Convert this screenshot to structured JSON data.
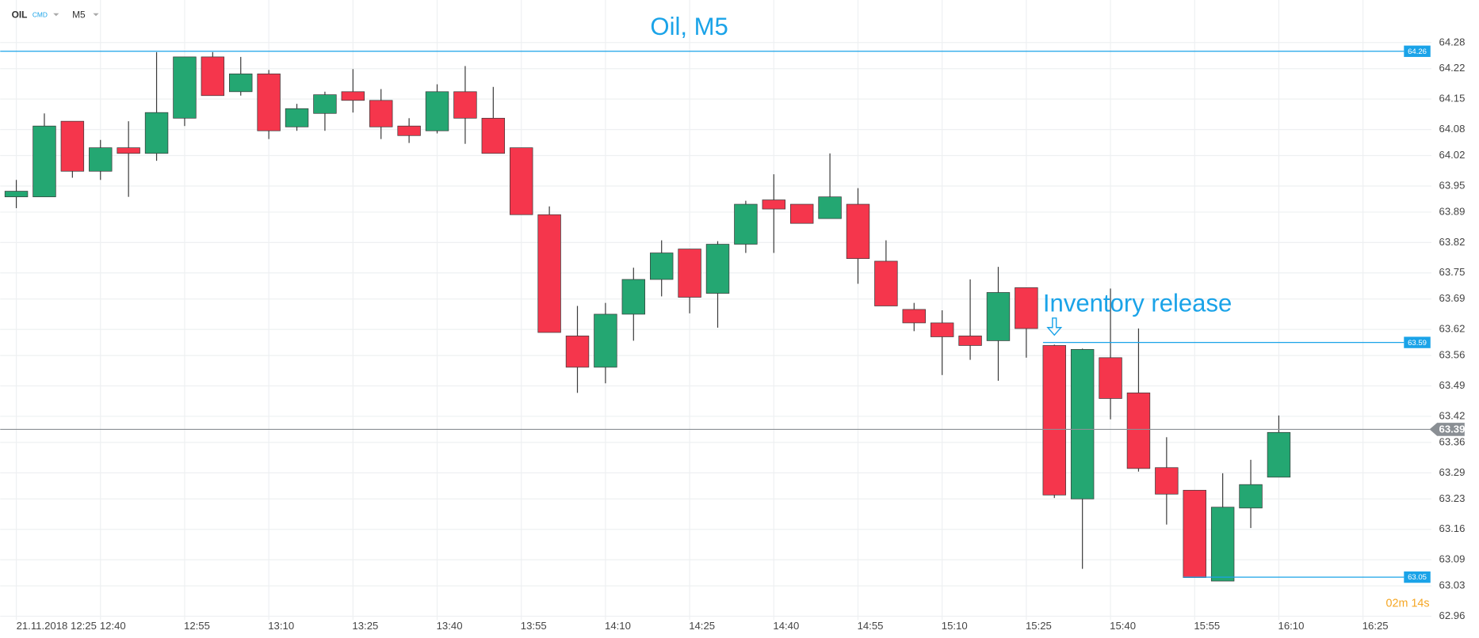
{
  "header": {
    "symbol": "OIL",
    "market": "CMD",
    "interval": "M5"
  },
  "chart_data": {
    "type": "candlestick",
    "title": "Oil, M5",
    "date": "21.11.2018",
    "annotation": {
      "text": "Inventory release",
      "x": "15:30"
    },
    "countdown": "02m 14s",
    "up_color": "#24a772",
    "down_color": "#f5364c",
    "grid": true,
    "ylim": [
      62.93,
      64.31
    ],
    "yticks": [
      64.28,
      64.22,
      64.15,
      64.08,
      64.02,
      63.95,
      63.89,
      63.82,
      63.75,
      63.69,
      63.62,
      63.56,
      63.49,
      63.42,
      63.36,
      63.29,
      63.23,
      63.16,
      63.09,
      63.03,
      62.96
    ],
    "xticks": [
      "12:25",
      "12:40",
      "12:55",
      "13:10",
      "13:25",
      "13:40",
      "13:55",
      "14:10",
      "14:25",
      "14:40",
      "14:55",
      "15:10",
      "15:25",
      "15:40",
      "15:55",
      "16:10",
      "16:25"
    ],
    "levels": [
      {
        "value": 64.26,
        "color": "#1aa3e8",
        "from": "12:25"
      },
      {
        "value": 63.59,
        "color": "#1aa3e8",
        "from": "15:30"
      },
      {
        "value": 63.05,
        "color": "#1aa3e8",
        "from": "15:55"
      }
    ],
    "current_price": {
      "value": 63.39,
      "color": "#8a8f94"
    },
    "x": [
      "12:25",
      "12:30",
      "12:35",
      "12:40",
      "12:45",
      "12:50",
      "12:55",
      "13:00",
      "13:05",
      "13:10",
      "13:15",
      "13:20",
      "13:25",
      "13:30",
      "13:35",
      "13:40",
      "13:45",
      "13:50",
      "13:55",
      "14:00",
      "14:05",
      "14:10",
      "14:15",
      "14:20",
      "14:25",
      "14:30",
      "14:35",
      "14:40",
      "14:45",
      "14:50",
      "14:55",
      "15:00",
      "15:05",
      "15:10",
      "15:15",
      "15:20",
      "15:25",
      "15:30",
      "15:35",
      "15:40",
      "15:45",
      "15:50",
      "15:55",
      "16:00",
      "16:05",
      "16:10"
    ],
    "open": [
      63.925,
      63.925,
      64.099,
      63.984,
      64.038,
      64.025,
      64.106,
      64.247,
      64.167,
      64.208,
      64.086,
      64.117,
      64.167,
      64.147,
      64.088,
      64.077,
      64.167,
      64.106,
      64.038,
      63.884,
      63.605,
      63.533,
      63.655,
      63.735,
      63.805,
      63.703,
      63.816,
      63.918,
      63.908,
      63.875,
      63.908,
      63.777,
      63.666,
      63.635,
      63.605,
      63.594,
      63.716,
      63.583,
      63.23,
      63.555,
      63.474,
      63.302,
      63.25,
      63.041,
      63.209,
      63.28
    ],
    "high": [
      63.964,
      64.117,
      64.099,
      64.056,
      64.099,
      64.258,
      64.247,
      64.258,
      64.247,
      64.217,
      64.139,
      64.167,
      64.219,
      64.173,
      64.106,
      64.184,
      64.226,
      64.178,
      64.038,
      63.903,
      63.674,
      63.681,
      63.762,
      63.825,
      63.805,
      63.823,
      63.916,
      63.977,
      63.908,
      64.025,
      63.945,
      63.825,
      63.681,
      63.664,
      63.735,
      63.764,
      63.716,
      63.585,
      63.576,
      63.714,
      63.622,
      63.372,
      63.25,
      63.289,
      63.32,
      63.422
    ],
    "low": [
      63.899,
      63.925,
      63.969,
      63.964,
      63.925,
      64.008,
      64.088,
      64.158,
      64.158,
      64.058,
      64.077,
      64.077,
      64.119,
      64.058,
      64.049,
      64.071,
      64.047,
      64.025,
      63.884,
      63.613,
      63.474,
      63.496,
      63.594,
      63.696,
      63.657,
      63.624,
      63.796,
      63.796,
      63.864,
      63.875,
      63.725,
      63.674,
      63.616,
      63.515,
      63.55,
      63.502,
      63.555,
      63.232,
      63.069,
      63.413,
      63.293,
      63.171,
      63.049,
      63.041,
      63.163,
      63.28
    ],
    "close": [
      63.938,
      64.088,
      63.984,
      64.038,
      64.025,
      64.119,
      64.247,
      64.158,
      64.208,
      64.077,
      64.128,
      64.16,
      64.147,
      64.086,
      64.066,
      64.167,
      64.106,
      64.025,
      63.884,
      63.613,
      63.533,
      63.655,
      63.735,
      63.796,
      63.694,
      63.816,
      63.908,
      63.897,
      63.864,
      63.925,
      63.783,
      63.674,
      63.635,
      63.603,
      63.583,
      63.705,
      63.622,
      63.239,
      63.574,
      63.461,
      63.3,
      63.241,
      63.049,
      63.211,
      63.263,
      63.383
    ]
  }
}
